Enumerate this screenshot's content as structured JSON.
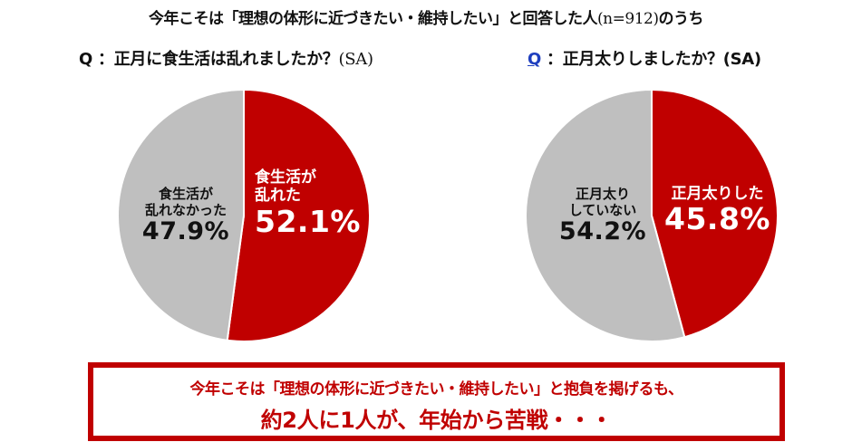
{
  "header": {
    "title_main": "今年こそは「理想の体形に近づきたい・維持したい」と回答した人",
    "title_n": "(n=912)",
    "title_suffix": "のうち"
  },
  "questions": [
    {
      "prefix": "Q",
      "sep": "：",
      "text": "正月に食生活は乱れましたか？",
      "tag": "(SA)"
    },
    {
      "prefix": "Q",
      "sep": "：",
      "text": "正月太りしましたか？",
      "tag": "(SA)"
    }
  ],
  "colors": {
    "accent_red": "#c00000",
    "gray": "#bfbfbf",
    "q_blue": "#1f3fbf"
  },
  "chart_data": [
    {
      "type": "pie",
      "title": "Q：正月に食生活は乱れましたか？(SA)",
      "categories": [
        "食生活が乱れた",
        "食生活が乱れなかった"
      ],
      "values": [
        52.1,
        47.9
      ],
      "unit": "%",
      "colors": [
        "#c00000",
        "#bfbfbf"
      ],
      "start_angle": "12 o'clock, clockwise",
      "labels": [
        {
          "line1": "食生活が",
          "line2": "乱れた",
          "pct": "52.1%"
        },
        {
          "line1": "食生活が",
          "line2": "乱れなかった",
          "pct": "47.9%"
        }
      ]
    },
    {
      "type": "pie",
      "title": "Q：正月太りしましたか？(SA)",
      "categories": [
        "正月太りした",
        "正月太りしていない"
      ],
      "values": [
        45.8,
        54.2
      ],
      "unit": "%",
      "colors": [
        "#c00000",
        "#bfbfbf"
      ],
      "start_angle": "12 o'clock, clockwise",
      "labels": [
        {
          "line1": "正月太りした",
          "pct": "45.8%"
        },
        {
          "line1": "正月太り",
          "line2": "していない",
          "pct": "54.2%"
        }
      ]
    }
  ],
  "callout": {
    "line1": "今年こそは「理想の体形に近づきたい・維持したい」と抱負を掲げるも、",
    "line2": "約2人に1人が、年始から苦戦・・・"
  }
}
